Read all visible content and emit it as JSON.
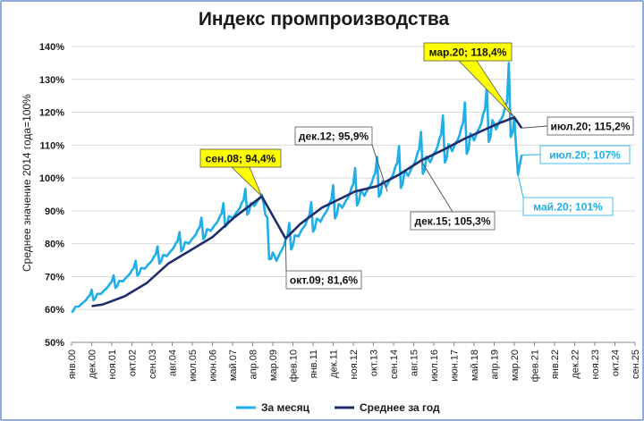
{
  "chart_data": {
    "type": "line",
    "title": "Индекс промпроизводства",
    "ylabel": "Среднее значение 2014 года=100%",
    "xlabel": "",
    "ylim": [
      50,
      140
    ],
    "y_ticks": [
      "50%",
      "60%",
      "70%",
      "80%",
      "90%",
      "100%",
      "110%",
      "120%",
      "130%",
      "140%"
    ],
    "x_range": [
      "2000-01",
      "2025-09"
    ],
    "x_ticks": [
      "янв.00",
      "дек.00",
      "ноя.01",
      "окт.02",
      "сен.03",
      "авг.04",
      "июл.05",
      "июн.06",
      "май.07",
      "апр.08",
      "мар.09",
      "фев.10",
      "янв.11",
      "дек.11",
      "ноя.12",
      "окт.13",
      "сен.14",
      "авг.15",
      "июл.16",
      "июн.17",
      "май.18",
      "апр.19",
      "мар.20",
      "фев.21",
      "янв.22",
      "дек.22",
      "ноя.23",
      "окт.24",
      "сен.25"
    ],
    "grid": true,
    "legend_position": "bottom",
    "series": [
      {
        "name": "За месяц",
        "color": "#1faee8",
        "anchors_x": [
          "2000-01",
          "2008-09",
          "2009-01",
          "2009-05",
          "2010-06",
          "2012-12",
          "2015-01",
          "2015-12",
          "2016-12",
          "2017-12",
          "2019-03",
          "2020-03",
          "2020-05",
          "2020-07"
        ],
        "anchors_y": [
          60,
          94,
          78,
          76,
          84,
          95,
          101,
          105,
          109,
          112,
          117,
          118,
          101,
          107
        ],
        "seasonal_amplitude": [
          2,
          6,
          6,
          6,
          6,
          8,
          9,
          9,
          10,
          11,
          12,
          12,
          0,
          0
        ],
        "peak_months": [
          "2018-12",
          "2019-12"
        ],
        "peak_values": [
          128,
          135
        ]
      },
      {
        "name": "Среднее за год",
        "color": "#1f2d6b",
        "x": [
          "2000-12",
          "2001-06",
          "2002-06",
          "2003-06",
          "2004-06",
          "2005-06",
          "2006-06",
          "2007-06",
          "2008-09",
          "2009-10",
          "2010-06",
          "2011-06",
          "2012-12",
          "2013-12",
          "2014-12",
          "2015-12",
          "2016-12",
          "2017-12",
          "2018-12",
          "2019-06",
          "2020-03",
          "2020-07"
        ],
        "y": [
          61,
          61.5,
          64,
          68,
          74,
          78,
          82,
          88,
          94.4,
          81.6,
          86,
          91,
          95.9,
          97.5,
          101,
          105.3,
          108.5,
          112,
          115,
          116.5,
          118.4,
          115.2
        ]
      }
    ],
    "annotations": [
      {
        "id": "sen08",
        "text": "сен.08; 94,4%",
        "style": "yellow"
      },
      {
        "id": "okt09",
        "text": "окт.09; 81,6%",
        "style": "white"
      },
      {
        "id": "dek12",
        "text": "дек.12; 95,9%",
        "style": "white"
      },
      {
        "id": "dek15",
        "text": "дек.15; 105,3%",
        "style": "white"
      },
      {
        "id": "mar20",
        "text": "мар.20; 118,4%",
        "style": "yellow"
      },
      {
        "id": "jul20avg",
        "text": "июл.20; 115,2%",
        "style": "white"
      },
      {
        "id": "jul20m",
        "text": "июл.20; 107%",
        "style": "blue"
      },
      {
        "id": "may20",
        "text": "май.20; 101%",
        "style": "blue"
      }
    ]
  }
}
